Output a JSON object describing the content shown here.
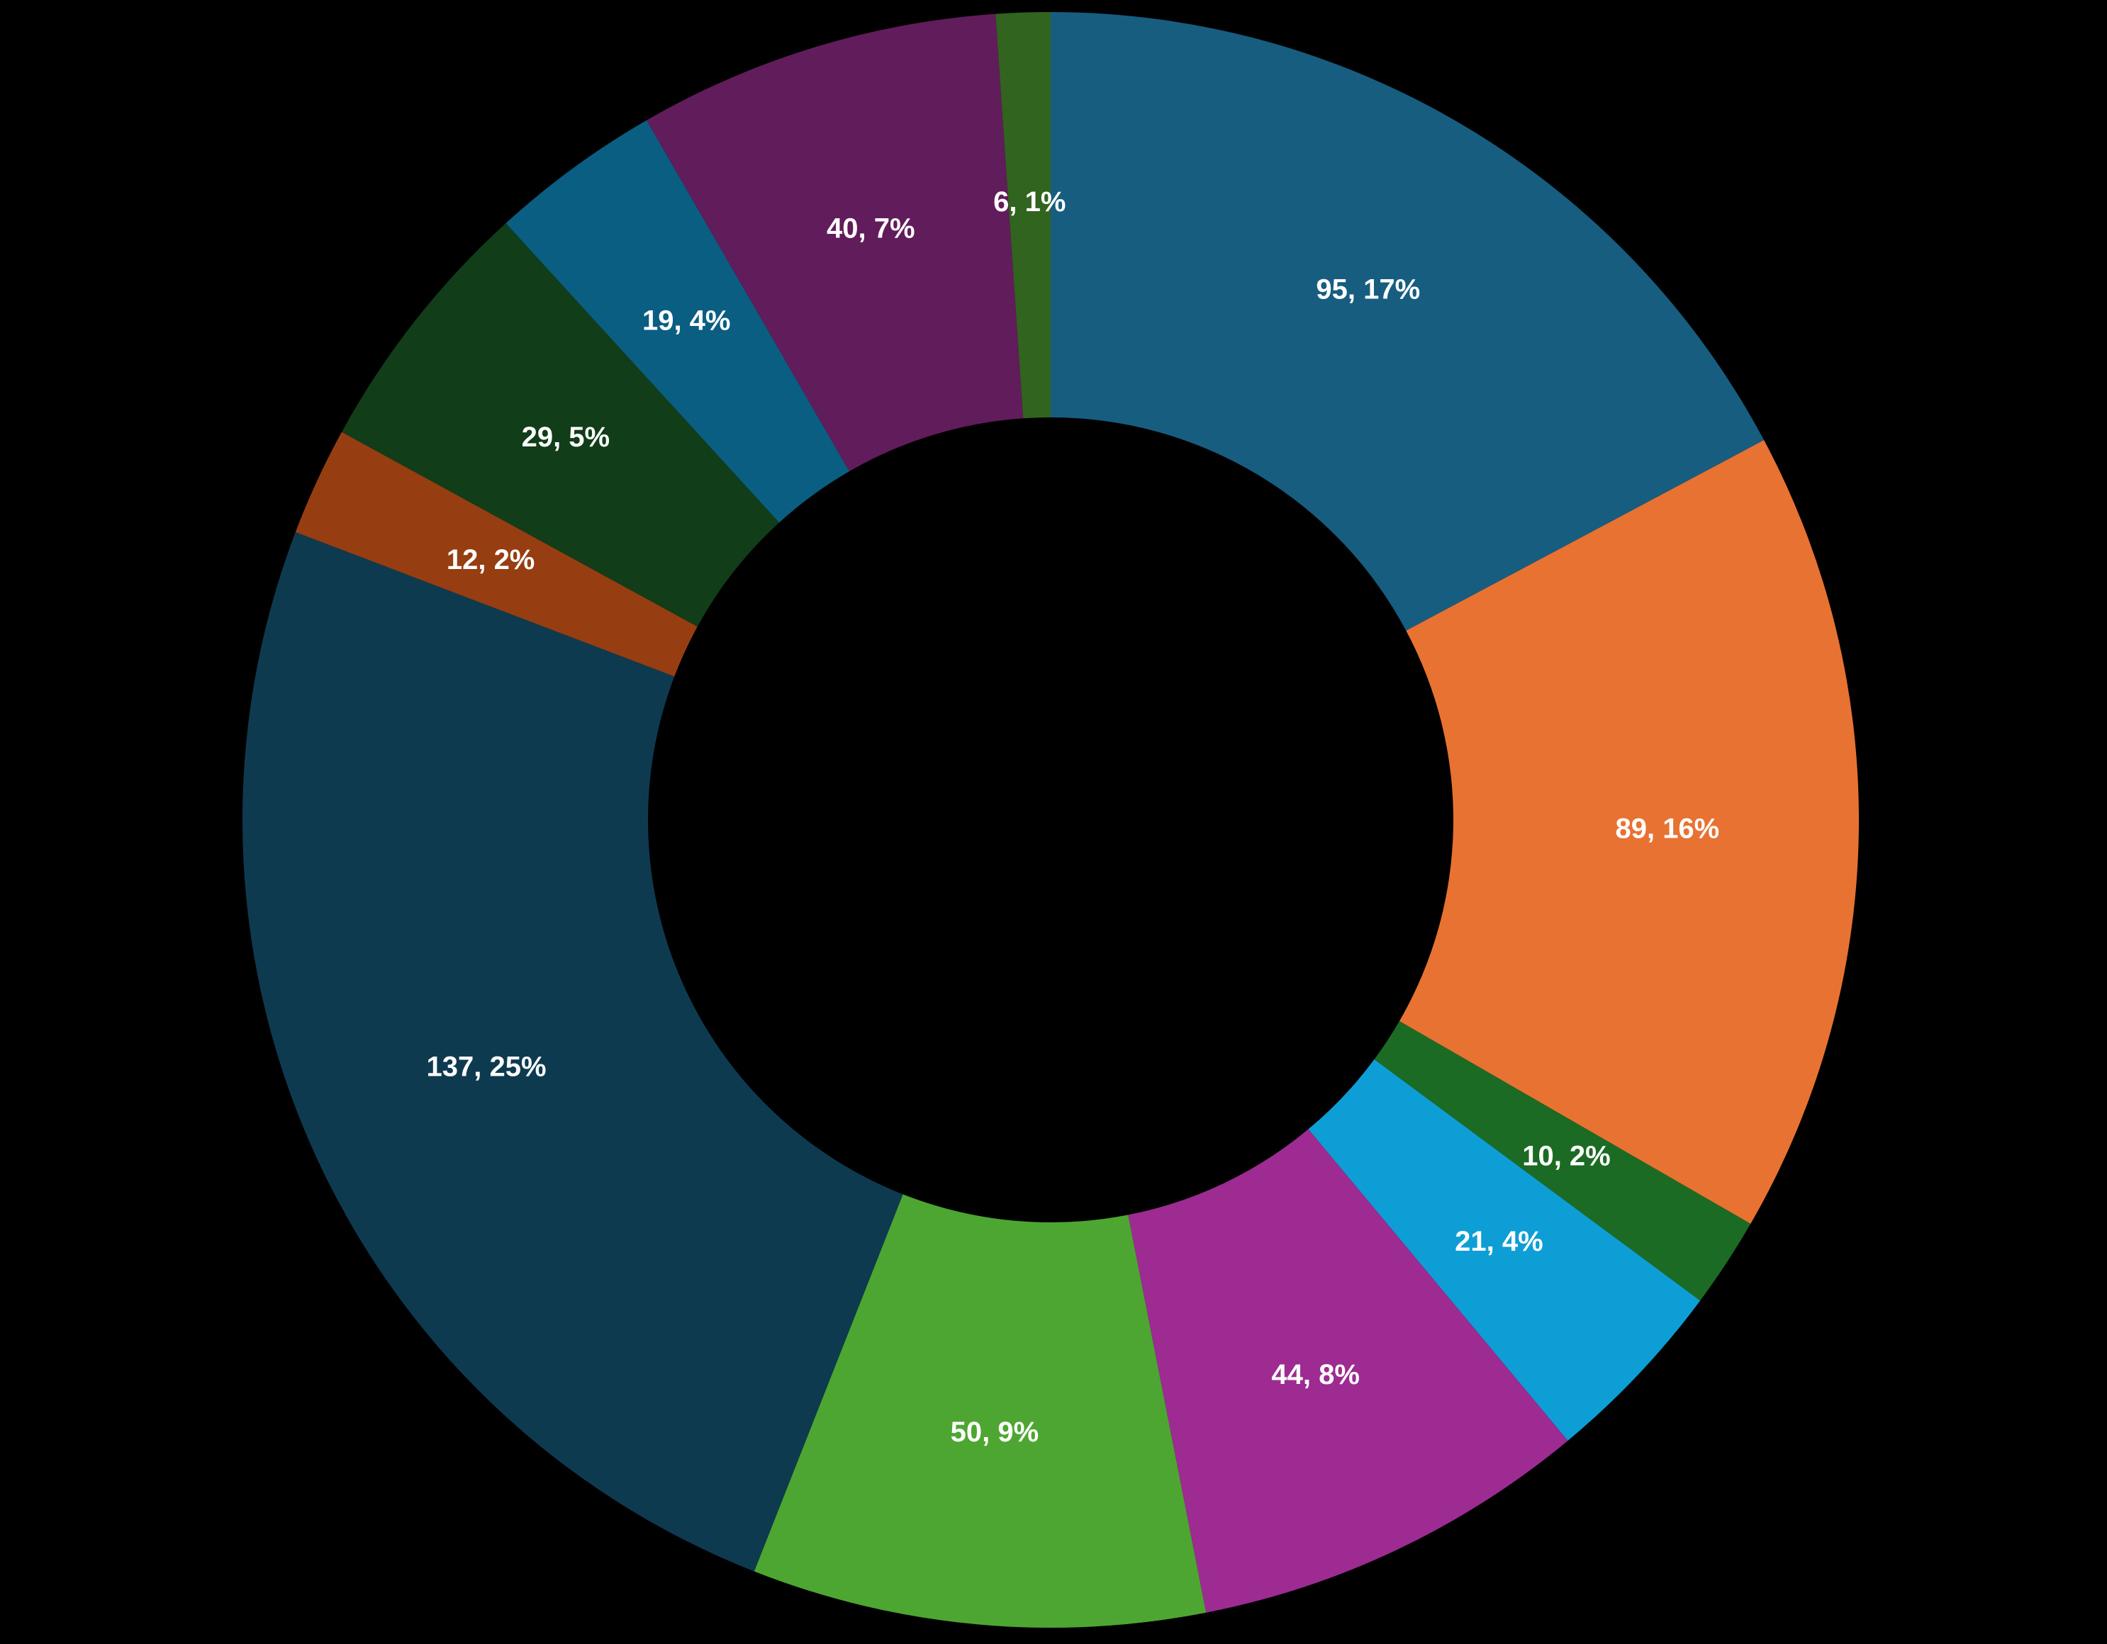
{
  "chart_data": {
    "type": "pie",
    "donut": true,
    "categories": [
      "",
      "",
      "",
      "",
      "",
      "",
      "",
      "",
      "",
      "",
      "",
      ""
    ],
    "values": [
      95,
      89,
      10,
      21,
      44,
      50,
      137,
      12,
      29,
      19,
      40,
      6
    ],
    "labels": [
      "95, 17%",
      "89, 16%",
      "10, 2%",
      "21, 4%",
      "44, 8%",
      "50, 9%",
      "137, 25%",
      "12, 2%",
      "29, 5%",
      "19, 4%",
      "40, 7%",
      "6, 1%"
    ],
    "colors": [
      "#175D80",
      "#E87232",
      "#1C6B24",
      "#0E9ED6",
      "#9D2B92",
      "#4DA631",
      "#0E3A50",
      "#963E11",
      "#113D18",
      "#0A5E82",
      "#611C5B",
      "#31641E"
    ],
    "label_color": "#FFFFFF",
    "background": "#000000",
    "start": "12 o'clock",
    "direction": "clockwise",
    "title": "",
    "legend": "none"
  }
}
